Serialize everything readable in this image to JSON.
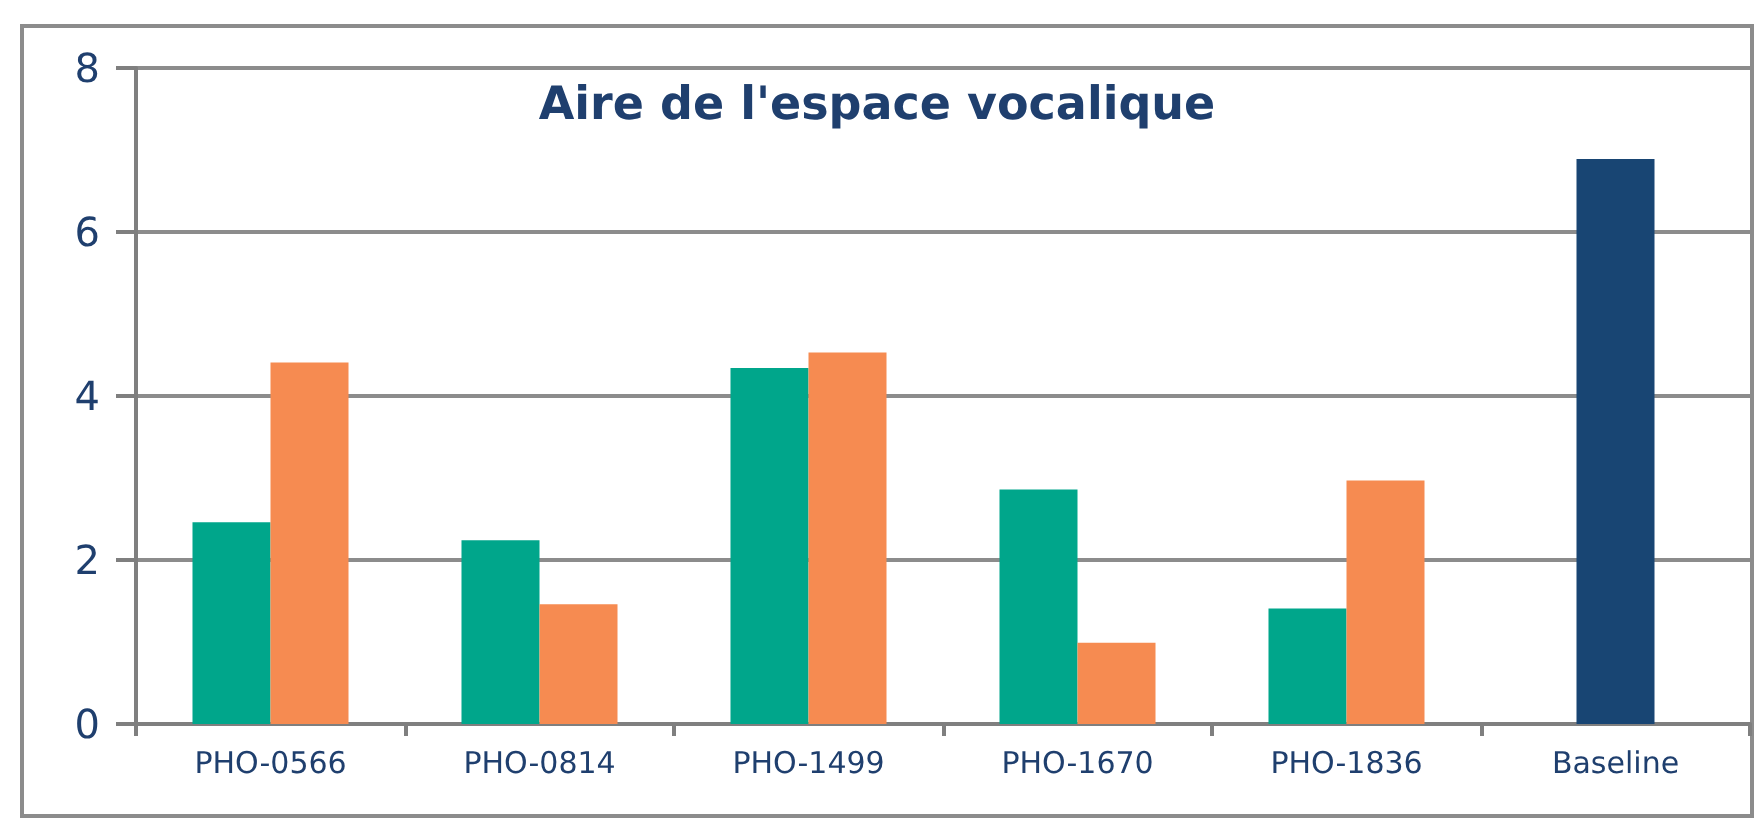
{
  "chart_data": {
    "type": "bar",
    "title": "Aire de l'espace vocalique",
    "categories": [
      "PHO-0566",
      "PHO-0814",
      "PHO-1499",
      "PHO-1670",
      "PHO-1836",
      "Baseline"
    ],
    "series": [
      {
        "color": "#00a68b",
        "values": [
          2.46,
          2.24,
          4.34,
          2.86,
          1.41,
          null
        ]
      },
      {
        "color": "#f68b51",
        "values": [
          4.41,
          1.46,
          4.53,
          0.99,
          2.97,
          null
        ]
      },
      {
        "color": "#184573",
        "values": [
          null,
          null,
          null,
          null,
          null,
          6.89
        ]
      }
    ],
    "ylim": [
      0,
      8
    ],
    "yticks": [
      0,
      2,
      4,
      6,
      8
    ],
    "grid": "y"
  }
}
